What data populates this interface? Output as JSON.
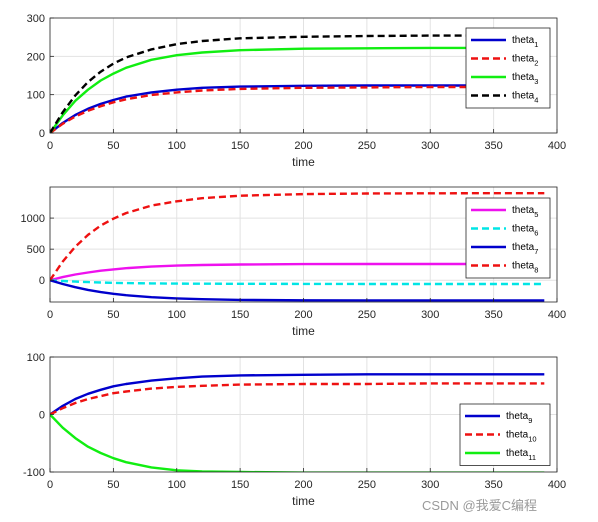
{
  "watermark": "CSDN @我爱C编程",
  "chart_data": [
    {
      "type": "line",
      "xlabel": "time",
      "xlim": [
        0,
        400
      ],
      "ylim": [
        0,
        300
      ],
      "xticks": [
        0,
        50,
        100,
        150,
        200,
        250,
        300,
        350,
        400
      ],
      "yticks": [
        0,
        100,
        200,
        300
      ],
      "grid": true,
      "legend_position": "top-right",
      "series": [
        {
          "name": "theta",
          "sub": "1",
          "color": "#0000cc",
          "dash": "solid",
          "x": [
            0,
            10,
            20,
            30,
            40,
            50,
            60,
            80,
            100,
            120,
            150,
            200,
            250,
            300,
            350,
            390
          ],
          "y": [
            0,
            26,
            47,
            63,
            76,
            86,
            95,
            106,
            113,
            118,
            121,
            123,
            124,
            124,
            124,
            124
          ]
        },
        {
          "name": "theta",
          "sub": "2",
          "color": "#ee1111",
          "dash": "dashed",
          "x": [
            0,
            10,
            20,
            30,
            40,
            50,
            60,
            80,
            100,
            120,
            150,
            200,
            250,
            300,
            350,
            390
          ],
          "y": [
            0,
            24,
            43,
            58,
            70,
            80,
            88,
            99,
            106,
            111,
            115,
            118,
            119,
            120,
            120,
            120
          ]
        },
        {
          "name": "theta",
          "sub": "3",
          "color": "#11ee11",
          "dash": "solid",
          "x": [
            0,
            10,
            20,
            30,
            40,
            50,
            60,
            80,
            100,
            120,
            150,
            200,
            250,
            300,
            350,
            390
          ],
          "y": [
            0,
            46,
            84,
            113,
            137,
            155,
            170,
            191,
            203,
            210,
            216,
            220,
            221,
            222,
            222,
            222
          ]
        },
        {
          "name": "theta",
          "sub": "4",
          "color": "#000000",
          "dash": "dashed",
          "x": [
            0,
            10,
            20,
            30,
            40,
            50,
            60,
            80,
            100,
            120,
            150,
            200,
            250,
            300,
            350,
            390
          ],
          "y": [
            0,
            54,
            98,
            133,
            160,
            181,
            197,
            218,
            232,
            240,
            247,
            251,
            253,
            254,
            254,
            254
          ]
        }
      ]
    },
    {
      "type": "line",
      "xlabel": "time",
      "xlim": [
        0,
        400
      ],
      "ylim": [
        -350,
        1500
      ],
      "xticks": [
        0,
        50,
        100,
        150,
        200,
        250,
        300,
        350,
        400
      ],
      "yticks": [
        0,
        500,
        1000
      ],
      "grid": true,
      "legend_position": "top-right",
      "series": [
        {
          "name": "theta",
          "sub": "5",
          "color": "#ee11ee",
          "dash": "solid",
          "x": [
            0,
            10,
            20,
            30,
            40,
            50,
            60,
            80,
            100,
            120,
            150,
            200,
            250,
            300,
            350,
            390
          ],
          "y": [
            0,
            50,
            92,
            125,
            153,
            175,
            193,
            219,
            235,
            245,
            254,
            259,
            261,
            262,
            262,
            262
          ]
        },
        {
          "name": "theta",
          "sub": "6",
          "color": "#00e5e5",
          "dash": "dashed",
          "x": [
            0,
            10,
            20,
            30,
            40,
            50,
            60,
            80,
            100,
            120,
            150,
            200,
            250,
            300,
            350,
            390
          ],
          "y": [
            0,
            -12,
            -22,
            -30,
            -37,
            -42,
            -46,
            -51,
            -54,
            -56,
            -58,
            -59,
            -60,
            -60,
            -60,
            -60
          ]
        },
        {
          "name": "theta",
          "sub": "7",
          "color": "#0000cc",
          "dash": "solid",
          "x": [
            0,
            10,
            20,
            30,
            40,
            50,
            60,
            80,
            100,
            120,
            150,
            200,
            250,
            300,
            350,
            390
          ],
          "y": [
            0,
            -60,
            -112,
            -155,
            -190,
            -218,
            -240,
            -272,
            -292,
            -305,
            -316,
            -323,
            -325,
            -326,
            -326,
            -326
          ]
        },
        {
          "name": "theta",
          "sub": "8",
          "color": "#ee1111",
          "dash": "dashed",
          "x": [
            0,
            10,
            20,
            30,
            40,
            50,
            60,
            80,
            100,
            120,
            150,
            200,
            250,
            300,
            350,
            390
          ],
          "y": [
            0,
            300,
            540,
            730,
            880,
            990,
            1080,
            1200,
            1270,
            1320,
            1360,
            1385,
            1395,
            1398,
            1400,
            1400
          ]
        }
      ]
    },
    {
      "type": "line",
      "xlabel": "time",
      "xlim": [
        0,
        400
      ],
      "ylim": [
        -100,
        100
      ],
      "xticks": [
        0,
        50,
        100,
        150,
        200,
        250,
        300,
        350,
        400
      ],
      "yticks": [
        -100,
        0,
        100
      ],
      "grid": true,
      "legend_position": "bottom-right",
      "series": [
        {
          "name": "theta",
          "sub": "9",
          "color": "#0000cc",
          "dash": "solid",
          "x": [
            0,
            10,
            20,
            30,
            40,
            50,
            60,
            80,
            100,
            120,
            150,
            200,
            250,
            300,
            350,
            390
          ],
          "y": [
            0,
            15,
            27,
            36,
            43,
            49,
            53,
            59,
            63,
            66,
            68,
            69,
            70,
            70,
            70,
            70
          ]
        },
        {
          "name": "theta",
          "sub": "10",
          "color": "#ee1111",
          "dash": "dashed",
          "x": [
            0,
            10,
            20,
            30,
            40,
            50,
            60,
            80,
            100,
            120,
            150,
            200,
            250,
            300,
            350,
            390
          ],
          "y": [
            0,
            11,
            20,
            27,
            32,
            37,
            40,
            45,
            48,
            50,
            52,
            53,
            53,
            54,
            54,
            54
          ]
        },
        {
          "name": "theta",
          "sub": "11",
          "color": "#11ee11",
          "dash": "solid",
          "x": [
            0,
            10,
            20,
            30,
            40,
            50,
            60,
            80,
            100,
            120,
            150,
            200,
            250,
            300,
            350,
            390
          ],
          "y": [
            0,
            -23,
            -41,
            -56,
            -67,
            -76,
            -83,
            -92,
            -97,
            -99,
            -100,
            -101,
            -101,
            -101,
            -101,
            -101
          ]
        }
      ]
    }
  ]
}
